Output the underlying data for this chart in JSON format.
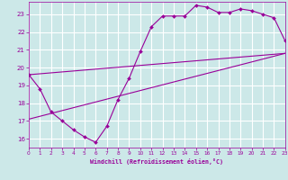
{
  "xlabel": "Windchill (Refroidissement éolien,°C)",
  "bg_color": "#cce8e8",
  "grid_color": "#ffffff",
  "line_color": "#990099",
  "x_min": 0,
  "x_max": 23,
  "y_min": 15.5,
  "y_max": 23.7,
  "y_ticks": [
    16,
    17,
    18,
    19,
    20,
    21,
    22,
    23
  ],
  "x_ticks": [
    0,
    1,
    2,
    3,
    4,
    5,
    6,
    7,
    8,
    9,
    10,
    11,
    12,
    13,
    14,
    15,
    16,
    17,
    18,
    19,
    20,
    21,
    22,
    23
  ],
  "line1_x": [
    0,
    1,
    2,
    3,
    4,
    5,
    6,
    7,
    8,
    9,
    10,
    11,
    12,
    13,
    14,
    15,
    16,
    17,
    18,
    19,
    20,
    21,
    22,
    23
  ],
  "line1_y": [
    19.6,
    18.8,
    17.5,
    17.0,
    16.5,
    16.1,
    15.8,
    16.7,
    18.2,
    19.4,
    20.9,
    22.3,
    22.9,
    22.9,
    22.9,
    23.5,
    23.4,
    23.1,
    23.1,
    23.3,
    23.2,
    23.0,
    22.8,
    21.5
  ],
  "line2_x": [
    0,
    23
  ],
  "line2_y": [
    19.6,
    20.8
  ],
  "line3_x": [
    0,
    23
  ],
  "line3_y": [
    17.1,
    20.8
  ],
  "linewidth": 0.8,
  "marker_size": 2.0
}
